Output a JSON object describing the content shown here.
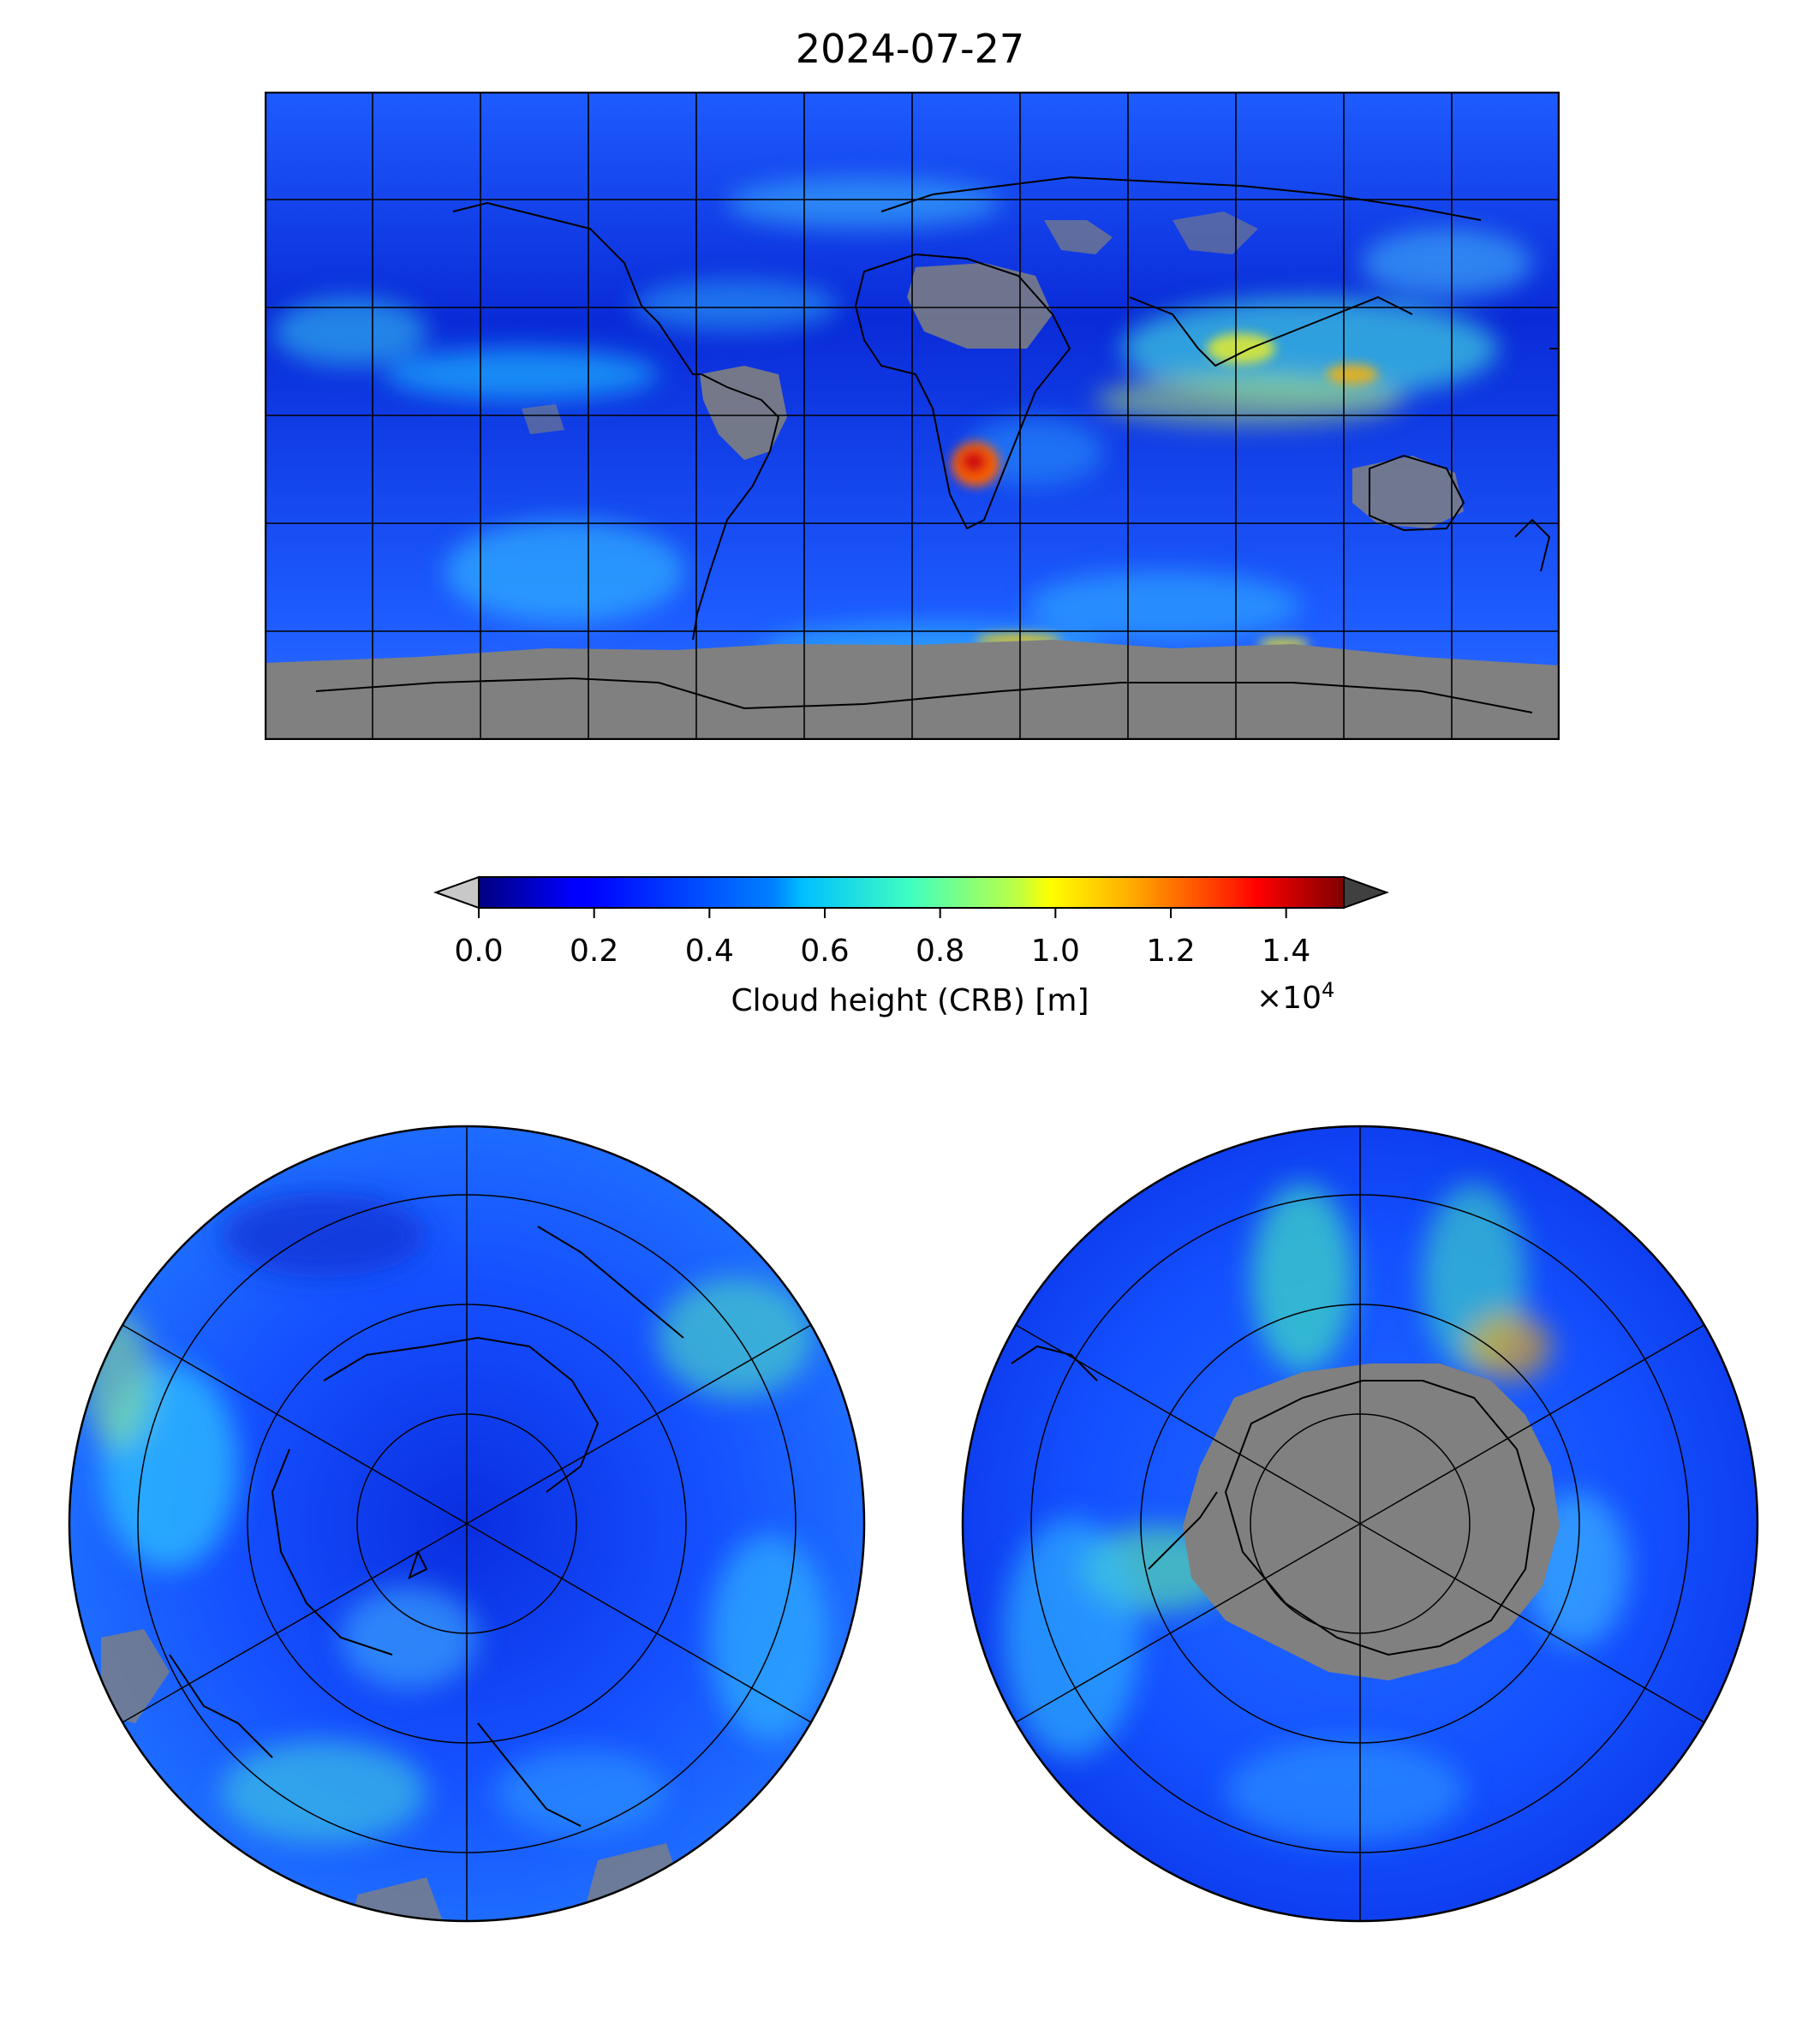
{
  "title": "2024-07-27",
  "colorbar": {
    "ticks": [
      "0.0",
      "0.2",
      "0.4",
      "0.6",
      "0.8",
      "1.0",
      "1.2",
      "1.4"
    ],
    "tick_values": [
      0.0,
      0.2,
      0.4,
      0.6,
      0.8,
      1.0,
      1.2,
      1.4
    ],
    "range": [
      0.0,
      1.5
    ],
    "label": "Cloud height (CRB) [m]",
    "multiplier_base": "×10",
    "multiplier_exp": "4",
    "colormap": "jet",
    "under_color": "#c8c8c8",
    "over_color": "#404040",
    "extend": "both"
  },
  "colors": {
    "no_data_gray": "#808080",
    "frame": "#000000"
  },
  "maps": {
    "global": {
      "projection": "plate-carree",
      "grid": "on"
    },
    "north_pole": {
      "projection": "north-polar-stereographic",
      "grid": "on"
    },
    "south_pole": {
      "projection": "south-polar-stereographic",
      "grid": "on"
    }
  }
}
